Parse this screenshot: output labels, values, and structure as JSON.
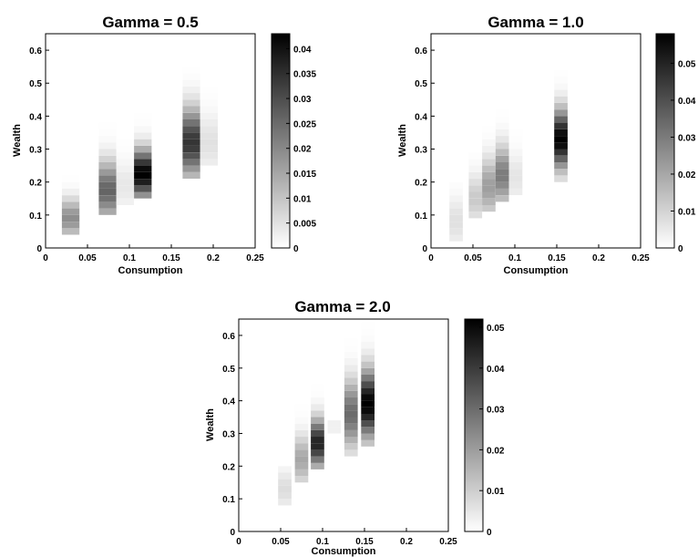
{
  "chart_data": [
    {
      "type": "heatmap",
      "title": "Gamma = 0.5",
      "xlabel": "Consumption",
      "ylabel": "Wealth",
      "xlim": [
        0,
        0.25
      ],
      "ylim": [
        0,
        0.65
      ],
      "xticks": [
        "0",
        "0.05",
        "0.1",
        "0.15",
        "0.2",
        "0.25"
      ],
      "yticks": [
        "0",
        "0.1",
        "0.2",
        "0.3",
        "0.4",
        "0.5",
        "0.6"
      ],
      "colorbar": {
        "min": 0,
        "max": 0.043,
        "ticks": [
          "0",
          "0.005",
          "0.01",
          "0.015",
          "0.02",
          "0.025",
          "0.03",
          "0.035",
          "0.04"
        ]
      },
      "cell_width": 0.021,
      "cell_height": 0.02,
      "columns": [
        {
          "x": 0.03,
          "y_min": 0.04,
          "y_max": 0.26,
          "peak_y": 0.09,
          "peak": 0.019,
          "spread": 0.04
        },
        {
          "x": 0.074,
          "y_min": 0.1,
          "y_max": 0.44,
          "peak_y": 0.175,
          "peak": 0.026,
          "spread": 0.06
        },
        {
          "x": 0.095,
          "y_min": 0.13,
          "y_max": 0.34,
          "peak_y": 0.19,
          "peak": 0.004,
          "spread": 0.05
        },
        {
          "x": 0.116,
          "y_min": 0.15,
          "y_max": 0.52,
          "peak_y": 0.225,
          "peak": 0.043,
          "spread": 0.05
        },
        {
          "x": 0.174,
          "y_min": 0.21,
          "y_max": 0.54,
          "peak_y": 0.32,
          "peak": 0.034,
          "spread": 0.07
        },
        {
          "x": 0.195,
          "y_min": 0.25,
          "y_max": 0.48,
          "peak_y": 0.32,
          "peak": 0.005,
          "spread": 0.06
        }
      ]
    },
    {
      "type": "heatmap",
      "title": "Gamma = 1.0",
      "xlabel": "Consumption",
      "ylabel": "Wealth",
      "xlim": [
        0,
        0.25
      ],
      "ylim": [
        0,
        0.65
      ],
      "xticks": [
        "0",
        "0.05",
        "0.1",
        "0.15",
        "0.2",
        "0.25"
      ],
      "yticks": [
        "0",
        "0.1",
        "0.2",
        "0.3",
        "0.4",
        "0.5",
        "0.6"
      ],
      "colorbar": {
        "min": 0,
        "max": 0.058,
        "ticks": [
          "0",
          "0.01",
          "0.02",
          "0.03",
          "0.04",
          "0.05"
        ]
      },
      "cell_width": 0.016,
      "cell_height": 0.02,
      "columns": [
        {
          "x": 0.03,
          "y_min": 0.02,
          "y_max": 0.2,
          "peak_y": 0.08,
          "peak": 0.007,
          "spread": 0.05
        },
        {
          "x": 0.053,
          "y_min": 0.09,
          "y_max": 0.29,
          "peak_y": 0.15,
          "peak": 0.012,
          "spread": 0.05
        },
        {
          "x": 0.069,
          "y_min": 0.11,
          "y_max": 0.38,
          "peak_y": 0.185,
          "peak": 0.022,
          "spread": 0.06
        },
        {
          "x": 0.085,
          "y_min": 0.14,
          "y_max": 0.49,
          "peak_y": 0.22,
          "peak": 0.03,
          "spread": 0.06
        },
        {
          "x": 0.101,
          "y_min": 0.16,
          "y_max": 0.36,
          "peak_y": 0.215,
          "peak": 0.006,
          "spread": 0.05
        },
        {
          "x": 0.155,
          "y_min": 0.2,
          "y_max": 0.56,
          "peak_y": 0.33,
          "peak": 0.058,
          "spread": 0.06
        }
      ]
    },
    {
      "type": "heatmap",
      "title": "Gamma = 2.0",
      "xlabel": "Consumption",
      "ylabel": "Wealth",
      "xlim": [
        0,
        0.25
      ],
      "ylim": [
        0,
        0.65
      ],
      "xticks": [
        "0",
        "0.05",
        "0.1",
        "0.15",
        "0.2",
        "0.25"
      ],
      "yticks": [
        "0",
        "0.1",
        "0.2",
        "0.3",
        "0.4",
        "0.5",
        "0.6"
      ],
      "colorbar": {
        "min": 0,
        "max": 0.052,
        "ticks": [
          "0",
          "0.01",
          "0.02",
          "0.03",
          "0.04",
          "0.05"
        ]
      },
      "cell_width": 0.016,
      "cell_height": 0.02,
      "columns": [
        {
          "x": 0.055,
          "y_min": 0.08,
          "y_max": 0.2,
          "peak_y": 0.13,
          "peak": 0.007,
          "spread": 0.04
        },
        {
          "x": 0.075,
          "y_min": 0.15,
          "y_max": 0.38,
          "peak_y": 0.22,
          "peak": 0.018,
          "spread": 0.05
        },
        {
          "x": 0.094,
          "y_min": 0.19,
          "y_max": 0.56,
          "peak_y": 0.27,
          "peak": 0.045,
          "spread": 0.05
        },
        {
          "x": 0.114,
          "y_min": 0.3,
          "y_max": 0.34,
          "peak_y": 0.32,
          "peak": 0.003,
          "spread": 0.03
        },
        {
          "x": 0.134,
          "y_min": 0.23,
          "y_max": 0.58,
          "peak_y": 0.36,
          "peak": 0.03,
          "spread": 0.07
        },
        {
          "x": 0.154,
          "y_min": 0.26,
          "y_max": 0.63,
          "peak_y": 0.39,
          "peak": 0.052,
          "spread": 0.07
        }
      ]
    }
  ]
}
